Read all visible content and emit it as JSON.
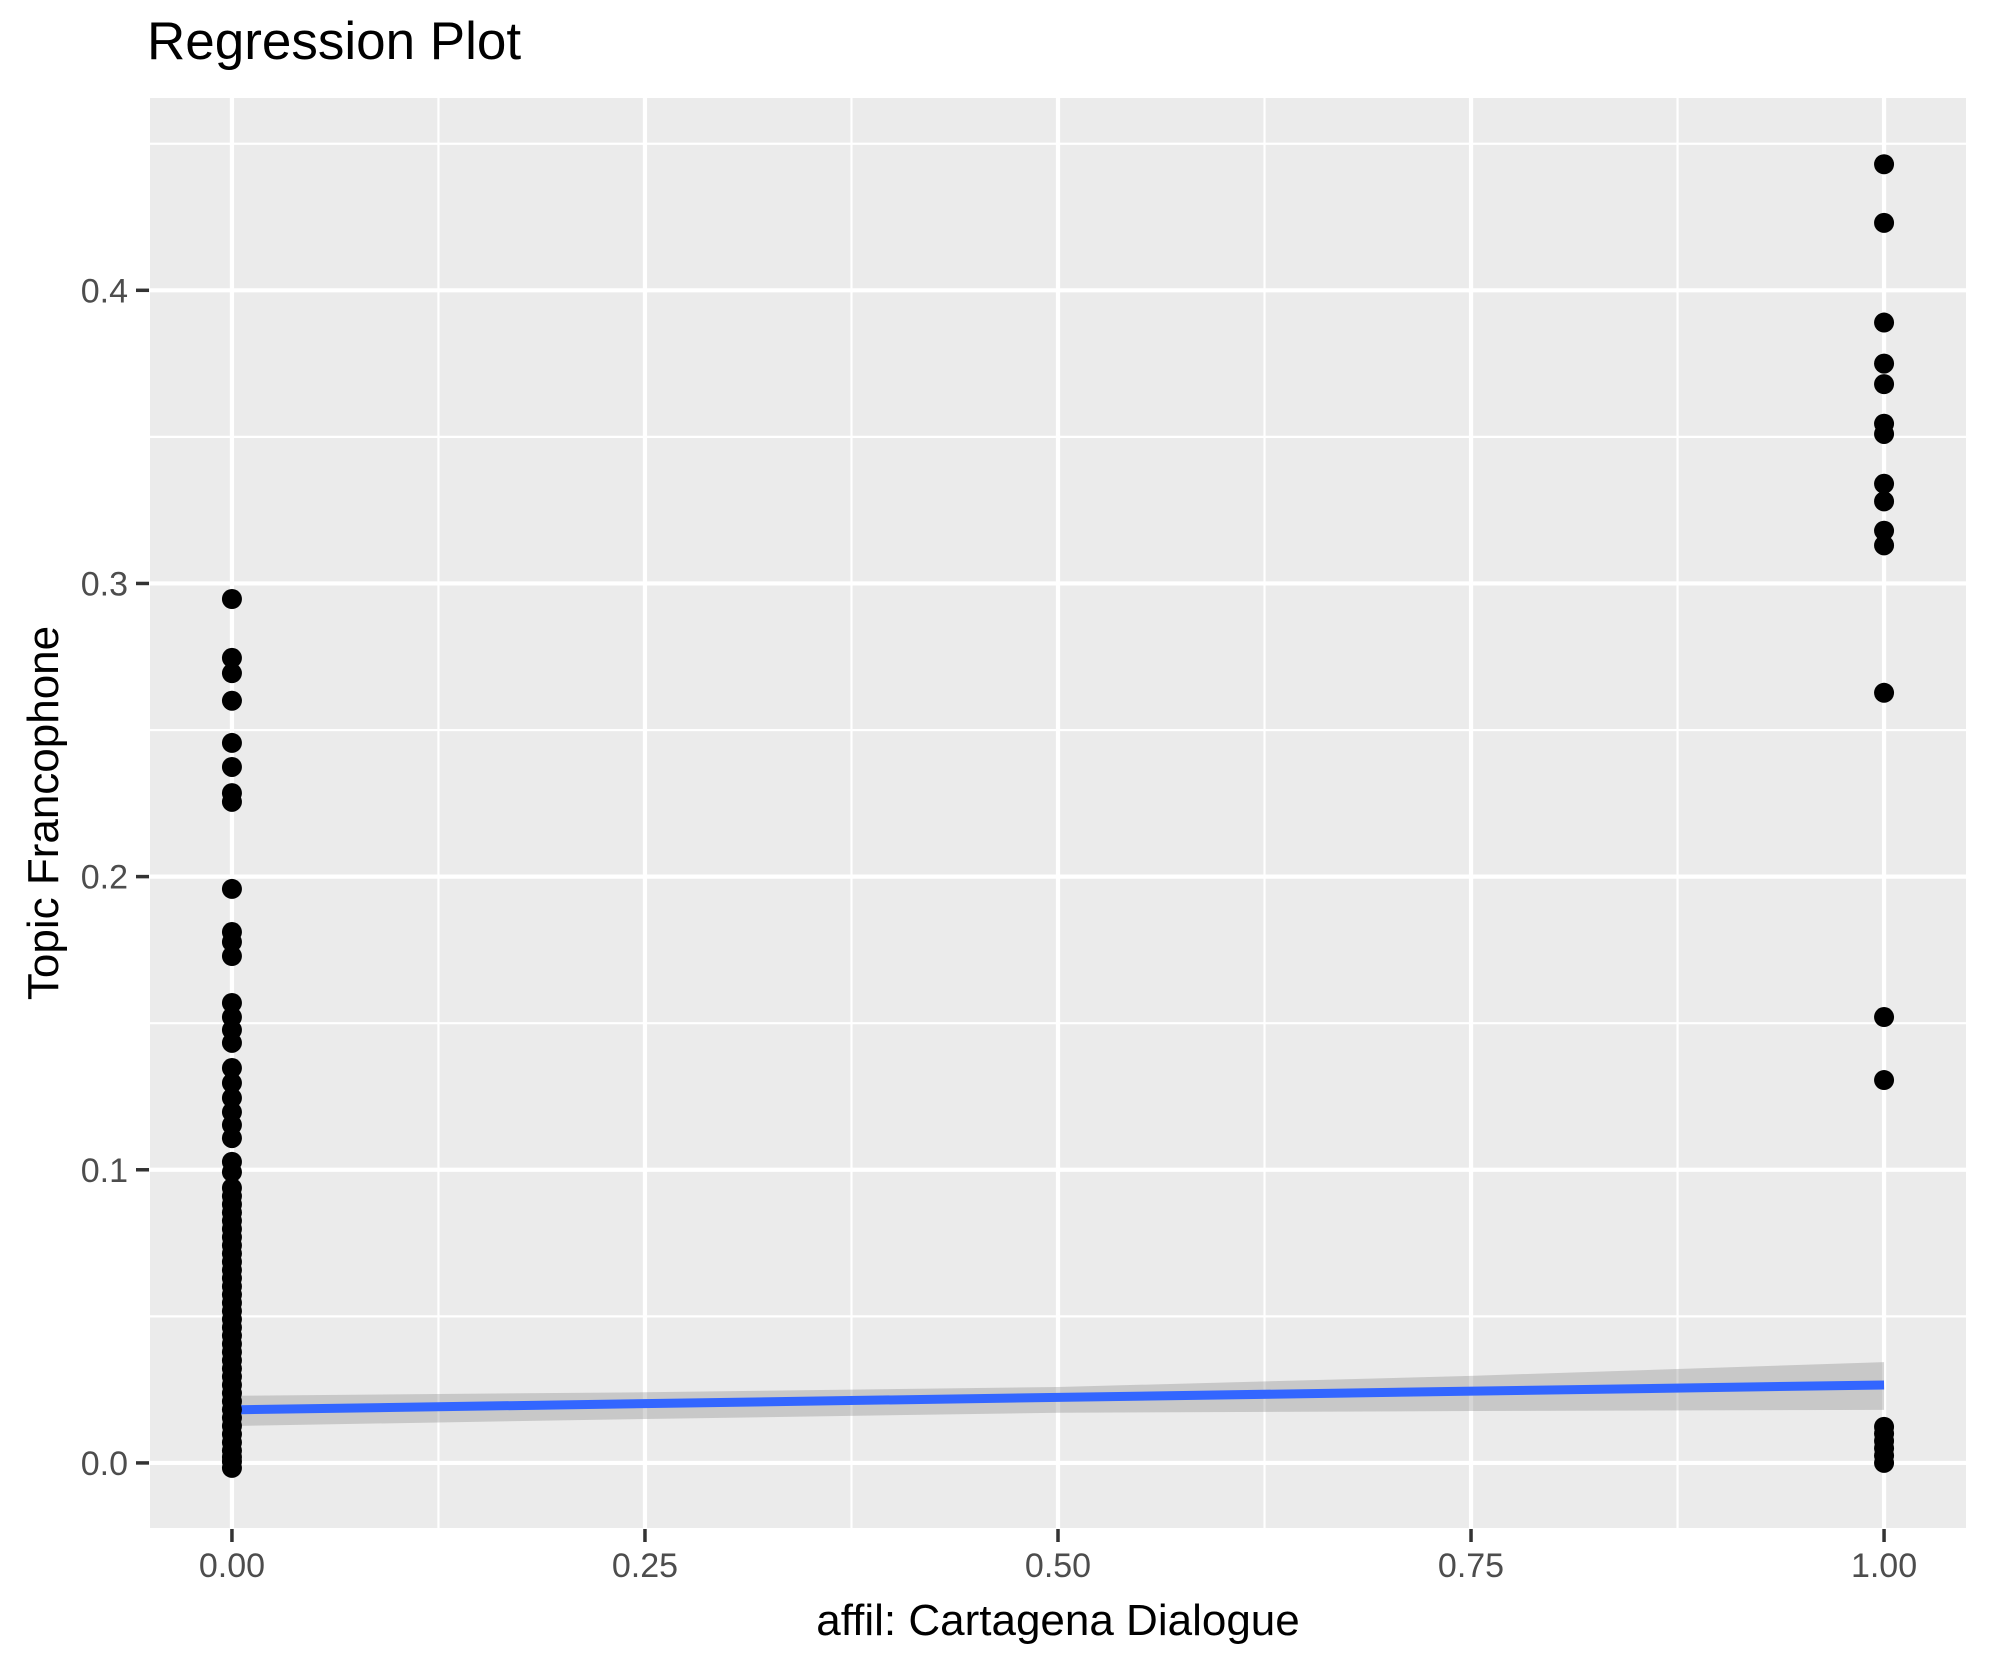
{
  "chart_data": {
    "type": "scatter",
    "title": "Regression Plot",
    "xlabel": "affil: Cartagena Dialogue",
    "ylabel": "Topic Francophone",
    "x_ticks": [
      0,
      0.25,
      0.5,
      0.75,
      1.0
    ],
    "x_tick_labels": [
      "0.00",
      "0.25",
      "0.50",
      "0.75",
      "1.00"
    ],
    "y_ticks": [
      0,
      0.1,
      0.2,
      0.3,
      0.4
    ],
    "y_tick_labels": [
      "0.0",
      "0.1",
      "0.2",
      "0.3",
      "0.4"
    ],
    "x_minor_ticks": [
      0.125,
      0.375,
      0.625,
      0.875
    ],
    "y_minor_ticks": [
      0.05,
      0.15,
      0.25,
      0.35,
      0.45
    ],
    "xlim": [
      -0.0496,
      1.0496
    ],
    "ylim": [
      -0.0222,
      0.4656
    ],
    "grid": true,
    "legend": "none",
    "series": [
      {
        "x": 0,
        "values": [
          0.2947,
          0.2746,
          0.2694,
          0.26,
          0.2456,
          0.2374,
          0.2285,
          0.2255,
          0.1958,
          0.1811,
          0.1777,
          0.1729,
          0.1569,
          0.1521,
          0.1477,
          0.1433,
          0.1347,
          0.1296,
          0.1245,
          0.1197,
          0.1153,
          0.1108,
          0.1027,
          0.0992,
          0.0938,
          0.091,
          0.0882,
          0.0854,
          0.0826,
          0.0798,
          0.077,
          0.0742,
          0.0714,
          0.0686,
          0.0658,
          0.063,
          0.0602,
          0.0574,
          0.0546,
          0.0518,
          0.049,
          0.0462,
          0.0434,
          0.0406,
          0.0378,
          0.035,
          0.0322,
          0.0294,
          0.0266,
          0.0238,
          0.021,
          0.0182,
          0.0154,
          0.0126,
          0.0098,
          0.007,
          0.0042,
          0.002,
          0.0005,
          -0.0017
        ]
      },
      {
        "x": 1,
        "values": [
          0.443,
          0.423,
          0.389,
          0.375,
          0.368,
          0.3545,
          0.351,
          0.334,
          0.328,
          0.318,
          0.313,
          0.2627,
          0.1521,
          0.1306,
          0.0123,
          0.01,
          0.0075,
          0.005,
          0.0025,
          0.0
        ]
      }
    ],
    "regression_line": {
      "x": [
        0,
        1
      ],
      "y": [
        0.0181,
        0.0266
      ]
    },
    "confidence_band": {
      "x": [
        0,
        0.25,
        0.5,
        0.75,
        1.0
      ],
      "upper": [
        0.0229,
        0.0241,
        0.0259,
        0.0297,
        0.0344
      ],
      "lower": [
        0.0126,
        0.015,
        0.0171,
        0.0177,
        0.0181
      ]
    },
    "colors": {
      "point": "#000000",
      "line": "#3366FF",
      "band": "rgba(120,120,120,0.30)",
      "panel_bg": "#EBEBEB",
      "grid": "#FFFFFF",
      "tick": "#333333",
      "tick_label": "#4D4D4D",
      "text": "#000000"
    }
  }
}
